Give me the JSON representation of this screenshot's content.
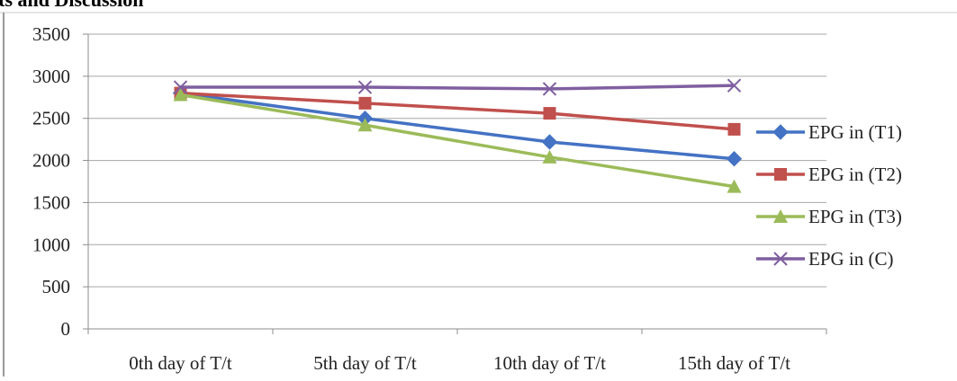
{
  "page": {
    "heading_fragment": "lts and Discussion"
  },
  "chart_data": {
    "type": "line",
    "title": "",
    "xlabel": "",
    "ylabel": "",
    "categories": [
      "0th day of T/t",
      "5th day of T/t",
      "10th day of T/t",
      "15th day of T/t"
    ],
    "ylim": [
      0,
      3500
    ],
    "yticks": [
      0,
      500,
      1000,
      1500,
      2000,
      2500,
      3000,
      3500
    ],
    "grid": "horizontal",
    "legend_position": "right",
    "series": [
      {
        "name": "EPG in (T1)",
        "values": [
          2800,
          2500,
          2220,
          2020
        ],
        "color": "#4472C4",
        "marker": "diamond"
      },
      {
        "name": "EPG in (T2)",
        "values": [
          2800,
          2680,
          2560,
          2370
        ],
        "color": "#C0504D",
        "marker": "square"
      },
      {
        "name": "EPG in (T3)",
        "values": [
          2780,
          2420,
          2040,
          1690
        ],
        "color": "#9BBB59",
        "marker": "triangle"
      },
      {
        "name": "EPG in (C)",
        "values": [
          2870,
          2870,
          2850,
          2890
        ],
        "color": "#7F5FA0",
        "marker": "x"
      }
    ]
  }
}
